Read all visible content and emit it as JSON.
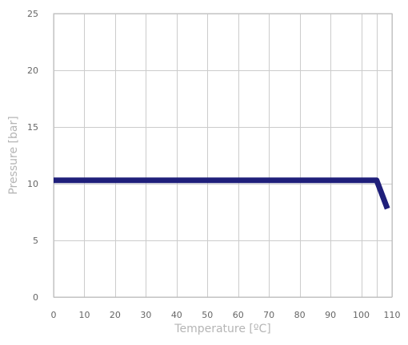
{
  "chart_data": {
    "type": "line",
    "title": "",
    "xlabel": "Temperature [ºC]",
    "ylabel": "Pressure [bar]",
    "xlim": [
      0,
      110
    ],
    "ylim": [
      0,
      25
    ],
    "grid": true,
    "legend": "none",
    "x_ticks": [
      0,
      10,
      20,
      30,
      40,
      50,
      60,
      70,
      80,
      90,
      100,
      110
    ],
    "y_ticks": [
      0,
      5,
      10,
      15,
      20,
      25
    ],
    "x_grid": [
      0,
      10,
      20,
      30,
      40,
      50,
      60,
      70,
      80,
      90,
      100,
      105,
      110
    ],
    "series": [
      {
        "color": "#1f1f7a",
        "x": [
          0,
          105,
          108.5
        ],
        "y": [
          10.3,
          10.3,
          7.8
        ]
      }
    ]
  }
}
